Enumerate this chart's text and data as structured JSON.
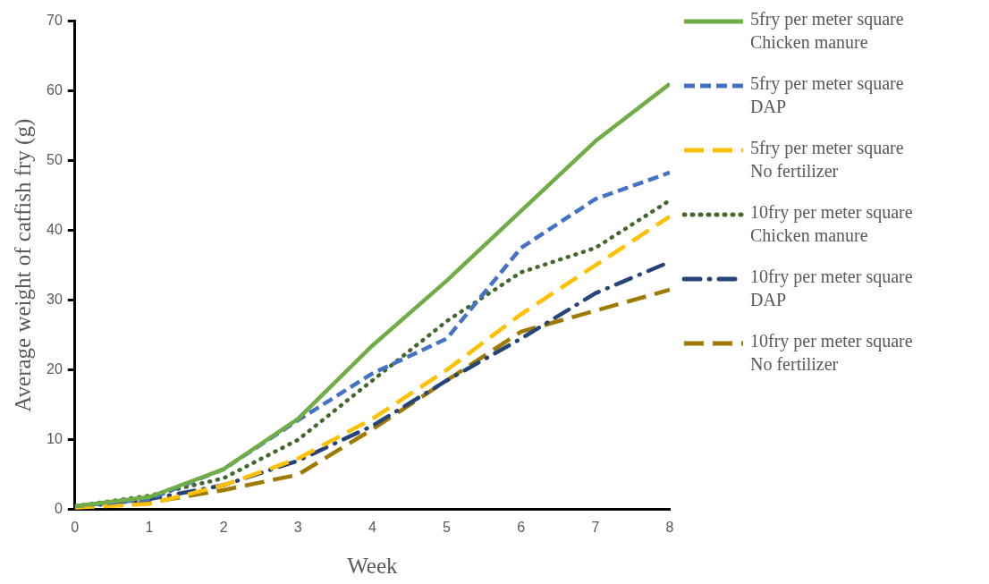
{
  "chart_data": {
    "type": "line",
    "xlabel": "Week",
    "ylabel": "Average weight of catfish fry (g)",
    "x": [
      0,
      1,
      2,
      3,
      4,
      5,
      6,
      7,
      8
    ],
    "xlim": [
      0,
      8
    ],
    "xticks": [
      0,
      1,
      2,
      3,
      4,
      5,
      6,
      7,
      8
    ],
    "ylim": [
      0,
      70
    ],
    "yticks": [
      0,
      10,
      20,
      30,
      40,
      50,
      60,
      70
    ],
    "grid": false,
    "legend": "right",
    "marker": "none",
    "series": [
      {
        "name": "5fry per meter square Chicken manure",
        "color": "#70ad47",
        "line_style": "solid",
        "values": [
          0.5,
          1.8,
          5.8,
          13,
          23.5,
          32.8,
          42.8,
          52.8,
          61
        ]
      },
      {
        "name": "5fry per meter square DAP",
        "color": "#4472c4",
        "line_style": "dashed",
        "values": [
          0.5,
          1.5,
          5.8,
          12.8,
          19.5,
          24.5,
          37.5,
          44.5,
          48.3
        ]
      },
      {
        "name": "5fry per meter square No fertilizer",
        "color": "#ffc000",
        "line_style": "longdash",
        "values": [
          0.3,
          0.8,
          3.5,
          7.3,
          13,
          20,
          28,
          35,
          42
        ]
      },
      {
        "name": "10fry per meter square Chicken manure",
        "color": "#43682b",
        "line_style": "dotted",
        "values": [
          0.5,
          2,
          4.5,
          10,
          18.5,
          27,
          34,
          37.5,
          44.3
        ]
      },
      {
        "name": "10fry per meter square DAP",
        "color": "#264478",
        "line_style": "dashdot",
        "values": [
          0.3,
          1.5,
          3.5,
          7,
          12,
          18.5,
          24.5,
          31,
          35.5
        ]
      },
      {
        "name": "10fry per meter square No fertilizer",
        "color": "#9e7b00",
        "line_style": "longdash",
        "values": [
          0.3,
          1,
          2.8,
          5,
          11.5,
          18.5,
          25.5,
          28.5,
          31.5
        ]
      }
    ]
  }
}
